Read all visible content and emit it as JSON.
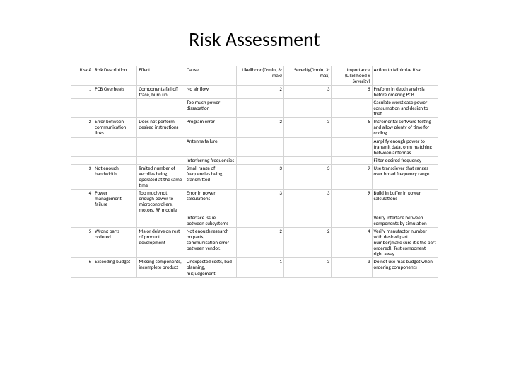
{
  "title": "Risk Assessment",
  "table": {
    "background_color": "#ffffff",
    "border_color": "#d4d4d4",
    "text_color": "#000000",
    "header_fontsize": 7,
    "cell_fontsize": 7,
    "columns": [
      {
        "key": "risk_no",
        "label": "Risk #",
        "align": "right",
        "width": "6%"
      },
      {
        "key": "desc",
        "label": "Risk Description",
        "align": "left",
        "width": "12%"
      },
      {
        "key": "effect",
        "label": "Effect",
        "align": "left",
        "width": "13%"
      },
      {
        "key": "cause",
        "label": "Cause",
        "align": "left",
        "width": "14%"
      },
      {
        "key": "likelihood",
        "label": "Likelihood(0-min, 3-max)",
        "align": "right",
        "width": "13%"
      },
      {
        "key": "severity",
        "label": "Severity(0-min, 3-max)",
        "align": "right",
        "width": "13%"
      },
      {
        "key": "importance",
        "label": "Importance (Likelihood x Severity)",
        "align": "right",
        "width": "11%"
      },
      {
        "key": "action",
        "label": "Action to Minimize Risk",
        "align": "left",
        "width": "18%"
      }
    ],
    "rows": [
      {
        "risk_no": "1",
        "desc": "PCB Overheats",
        "effect": "Components fall off trace, burn up",
        "cause": "No air flow",
        "likelihood": "2",
        "severity": "3",
        "importance": "6",
        "action": "Preform in depth analysis before ordering PCB"
      },
      {
        "risk_no": "",
        "desc": "",
        "effect": "",
        "cause": "Too much power dissapation",
        "likelihood": "",
        "severity": "",
        "importance": "",
        "action": "Caculate worst case power consumption and design to that"
      },
      {
        "risk_no": "2",
        "desc": "Error between communication links",
        "effect": "Does not perform desired instructions",
        "cause": "Program error",
        "likelihood": "2",
        "severity": "3",
        "importance": "6",
        "action": "Incremental software testing and allow plenty of time for coding"
      },
      {
        "risk_no": "",
        "desc": "",
        "effect": "",
        "cause": "Antenna failure",
        "likelihood": "",
        "severity": "",
        "importance": "",
        "action": "Amplify enough power to transmit data, ohm matching between antennas"
      },
      {
        "risk_no": "",
        "desc": "",
        "effect": "",
        "cause": "Interferring frequencies",
        "likelihood": "",
        "severity": "",
        "importance": "",
        "action": "Filter desired frequency"
      },
      {
        "risk_no": "3",
        "desc": "Not enough bandwidth",
        "effect": "limited number of vechiles being operated at the same time",
        "cause": "Small range of frequencies being transmitted",
        "likelihood": "3",
        "severity": "3",
        "importance": "9",
        "action": "Use transciever that ranges over broad frequency range"
      },
      {
        "risk_no": "4",
        "desc": "Power management failure",
        "effect": "Too much/not enough power to microcontrollers, motors, RF module",
        "cause": "Error in power calculations",
        "likelihood": "3",
        "severity": "3",
        "importance": "9",
        "action": "Build in buffer in power calculations"
      },
      {
        "risk_no": "",
        "desc": "",
        "effect": "",
        "cause": "Interface issue between subsystems",
        "likelihood": "",
        "severity": "",
        "importance": "",
        "action": "Verify interface between components by simulation"
      },
      {
        "risk_no": "5",
        "desc": "Wrong parts ordered",
        "effect": "Major delays on rest of product development",
        "cause": "Not enough research on parts, communication error between vendor.",
        "likelihood": "2",
        "severity": "2",
        "importance": "4",
        "action": "Verify manufactor number with desired part number(make sure it's the part ordered). Test component right away."
      },
      {
        "risk_no": "6",
        "desc": "Exceeding budget",
        "effect": "Missing components, incomplete product",
        "cause": "Unexpected costs, bad planning, misjudgement",
        "likelihood": "1",
        "severity": "3",
        "importance": "3",
        "action": "Do not use max budget when ordering components"
      }
    ]
  }
}
